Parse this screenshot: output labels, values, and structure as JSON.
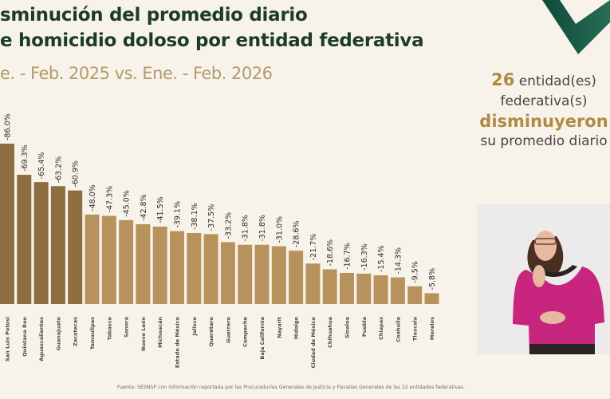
{
  "header": {
    "title_line1": "sminución del promedio diario",
    "title_line2": "e homicidio doloso por entidad federativa",
    "subtitle": "e. - Feb. 2025 vs. Ene. - Feb. 2026"
  },
  "side_panel": {
    "count": "26",
    "line1_rest": " entidad(es)",
    "line2": "federativa(s)",
    "line3": "disminuyeron",
    "line4": "su promedio diario"
  },
  "source": "Fuente: SESNSP con información reportada por las Procuradurías Generales de Justicia y Fiscalías Generales de las 32 entidades federativas.",
  "colors": {
    "top_bars": "#8e6e40",
    "other_bars": "#b8925d",
    "title": "#1d3b2c",
    "accent": "#b08a45",
    "logo_green": "#1b5a48"
  },
  "chart_data": {
    "type": "bar",
    "categories": [
      "San Luis Potosí",
      "Quintana Roo",
      "Aguascalientes",
      "Guanajuato",
      "Zacatecas",
      "Tamaulipas",
      "Tabasco",
      "Sonora",
      "Nuevo León",
      "Michoacán",
      "Estado de México",
      "Jalisco",
      "Querétaro",
      "Guerrero",
      "Campeche",
      "Baja California",
      "Nayarit",
      "Hidalgo",
      "Ciudad de México",
      "Chihuahua",
      "Sinaloa",
      "Puebla",
      "Chiapas",
      "Coahuila",
      "Tlaxcala",
      "Morelos"
    ],
    "values": [
      -86.0,
      -69.3,
      -65.4,
      -63.2,
      -60.9,
      -48.0,
      -47.3,
      -45.0,
      -42.8,
      -41.5,
      -39.1,
      -38.1,
      -37.5,
      -33.2,
      -31.8,
      -31.8,
      -31.0,
      -28.6,
      -21.7,
      -18.6,
      -16.7,
      -16.3,
      -15.4,
      -14.3,
      -9.5,
      -5.8
    ],
    "labels": [
      "-86.0%",
      "-69.3%",
      "-65.4%",
      "-63.2%",
      "-60.9%",
      "-48.0%",
      "-47.3%",
      "-45.0%",
      "-42.8%",
      "-41.5%",
      "-39.1%",
      "-38.1%",
      "-37.5%",
      "-33.2%",
      "-31.8%",
      "-31.8%",
      "-31.0%",
      "-28.6%",
      "-21.7%",
      "-18.6%",
      "-16.7%",
      "-16.3%",
      "-15.4%",
      "-14.3%",
      "-9.5%",
      "-5.8%"
    ],
    "highlighted_count": 5,
    "grid": false
  }
}
